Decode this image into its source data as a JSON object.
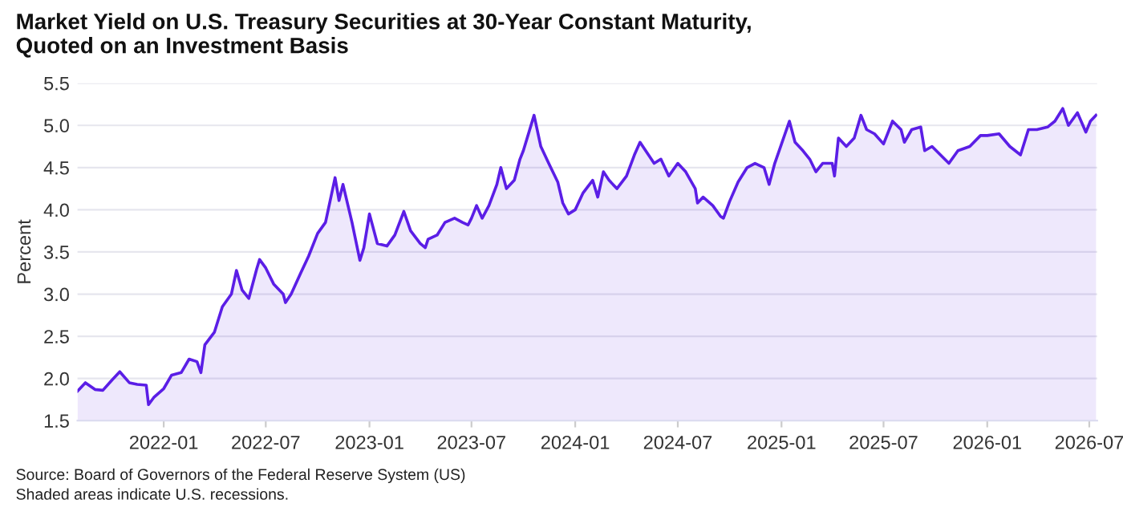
{
  "chart_data": {
    "type": "area",
    "title": "Market Yield on U.S. Treasury Securities at 30-Year Constant Maturity,\nQuoted on an Investment Basis",
    "ylabel": "Percent",
    "x": [
      "2021-08-01",
      "2021-08-15",
      "2021-09-01",
      "2021-09-15",
      "2021-10-01",
      "2021-10-15",
      "2021-11-01",
      "2021-11-15",
      "2021-12-01",
      "2021-12-05",
      "2021-12-15",
      "2022-01-01",
      "2022-01-15",
      "2022-02-01",
      "2022-02-15",
      "2022-03-01",
      "2022-03-08",
      "2022-03-15",
      "2022-04-01",
      "2022-04-15",
      "2022-05-01",
      "2022-05-10",
      "2022-05-20",
      "2022-06-01",
      "2022-06-15",
      "2022-06-20",
      "2022-07-01",
      "2022-07-15",
      "2022-08-01",
      "2022-08-05",
      "2022-08-15",
      "2022-09-01",
      "2022-09-15",
      "2022-10-01",
      "2022-10-15",
      "2022-11-01",
      "2022-11-08",
      "2022-11-15",
      "2022-12-01",
      "2022-12-15",
      "2022-12-22",
      "2023-01-01",
      "2023-01-15",
      "2023-02-01",
      "2023-02-15",
      "2023-03-03",
      "2023-03-15",
      "2023-04-01",
      "2023-04-10",
      "2023-04-15",
      "2023-05-01",
      "2023-05-15",
      "2023-06-01",
      "2023-06-15",
      "2023-06-25",
      "2023-07-01",
      "2023-07-10",
      "2023-07-20",
      "2023-08-01",
      "2023-08-15",
      "2023-08-22",
      "2023-09-01",
      "2023-09-15",
      "2023-09-25",
      "2023-10-01",
      "2023-10-20",
      "2023-11-01",
      "2023-11-15",
      "2023-12-01",
      "2023-12-10",
      "2023-12-20",
      "2024-01-01",
      "2024-01-15",
      "2024-02-01",
      "2024-02-10",
      "2024-02-20",
      "2024-03-01",
      "2024-03-15",
      "2024-04-01",
      "2024-04-15",
      "2024-04-25",
      "2024-05-10",
      "2024-05-20",
      "2024-06-01",
      "2024-06-15",
      "2024-07-01",
      "2024-07-15",
      "2024-08-01",
      "2024-08-05",
      "2024-08-15",
      "2024-09-01",
      "2024-09-15",
      "2024-09-20",
      "2024-10-01",
      "2024-10-16",
      "2024-11-01",
      "2024-11-15",
      "2024-12-01",
      "2024-12-10",
      "2024-12-20",
      "2025-01-01",
      "2025-01-15",
      "2025-01-25",
      "2025-02-08",
      "2025-02-20",
      "2025-03-03",
      "2025-03-15",
      "2025-04-01",
      "2025-04-05",
      "2025-04-12",
      "2025-04-26",
      "2025-05-10",
      "2025-05-22",
      "2025-06-01",
      "2025-06-15",
      "2025-07-01",
      "2025-07-17",
      "2025-08-01",
      "2025-08-07",
      "2025-08-20",
      "2025-09-05",
      "2025-09-12",
      "2025-09-25",
      "2025-10-10",
      "2025-10-25",
      "2025-11-10",
      "2025-12-01",
      "2025-12-20",
      "2026-01-01",
      "2026-01-22",
      "2026-02-10",
      "2026-03-01",
      "2026-03-15",
      "2026-03-30",
      "2026-04-18",
      "2026-05-01",
      "2026-05-15",
      "2026-05-25",
      "2026-06-10",
      "2026-06-25",
      "2026-07-03",
      "2026-07-13"
    ],
    "series": [
      {
        "color": "#5b1ee6",
        "values": [
          1.85,
          1.95,
          1.87,
          1.86,
          1.98,
          2.08,
          1.95,
          1.93,
          1.92,
          1.69,
          1.78,
          1.88,
          2.04,
          2.07,
          2.23,
          2.2,
          2.07,
          2.4,
          2.55,
          2.85,
          3.0,
          3.28,
          3.05,
          2.95,
          3.3,
          3.41,
          3.31,
          3.12,
          3.0,
          2.9,
          3.0,
          3.25,
          3.45,
          3.72,
          3.85,
          4.38,
          4.11,
          4.3,
          3.85,
          3.4,
          3.55,
          3.95,
          3.6,
          3.57,
          3.7,
          3.98,
          3.75,
          3.6,
          3.55,
          3.65,
          3.7,
          3.85,
          3.9,
          3.85,
          3.82,
          3.9,
          4.05,
          3.9,
          4.05,
          4.3,
          4.5,
          4.25,
          4.35,
          4.6,
          4.7,
          5.12,
          4.75,
          4.55,
          4.33,
          4.08,
          3.95,
          4.0,
          4.2,
          4.35,
          4.15,
          4.45,
          4.35,
          4.25,
          4.4,
          4.65,
          4.8,
          4.65,
          4.55,
          4.6,
          4.4,
          4.55,
          4.45,
          4.25,
          4.08,
          4.15,
          4.05,
          3.92,
          3.9,
          4.1,
          4.33,
          4.5,
          4.55,
          4.5,
          4.3,
          4.55,
          4.78,
          5.05,
          4.8,
          4.7,
          4.6,
          4.45,
          4.55,
          4.55,
          4.4,
          4.85,
          4.75,
          4.85,
          5.12,
          4.95,
          4.9,
          4.78,
          5.05,
          4.95,
          4.8,
          4.95,
          4.98,
          4.7,
          4.75,
          4.65,
          4.55,
          4.7,
          4.75,
          4.88,
          4.88,
          4.9,
          4.75,
          4.65,
          4.95,
          4.95,
          4.98,
          5.05,
          5.2,
          5.0,
          5.15,
          4.92,
          5.05,
          5.12
        ]
      }
    ],
    "xlim": [
      "2021-08-01",
      "2026-07-15"
    ],
    "xticks": [
      "2022-01",
      "2022-07",
      "2023-01",
      "2023-07",
      "2024-01",
      "2024-07",
      "2025-01",
      "2025-07",
      "2026-01",
      "2026-07"
    ],
    "ylim": [
      1.5,
      5.5
    ],
    "yticks": [
      {
        "value": 1.5,
        "label": "1.5"
      },
      {
        "value": 2,
        "label": "2.0"
      },
      {
        "value": 2.5,
        "label": "2.5"
      },
      {
        "value": 3,
        "label": "3.0"
      },
      {
        "value": 3.5,
        "label": "3.5"
      },
      {
        "value": 4,
        "label": "4.0"
      },
      {
        "value": 4.5,
        "label": "4.5"
      },
      {
        "value": 5,
        "label": "5.0"
      },
      {
        "value": 5.5,
        "label": "5.5"
      }
    ],
    "grid": "y",
    "annotations": [
      "Source: Board of Governors of the Federal Reserve System (US)",
      "Shaded areas indicate U.S. recessions."
    ]
  }
}
